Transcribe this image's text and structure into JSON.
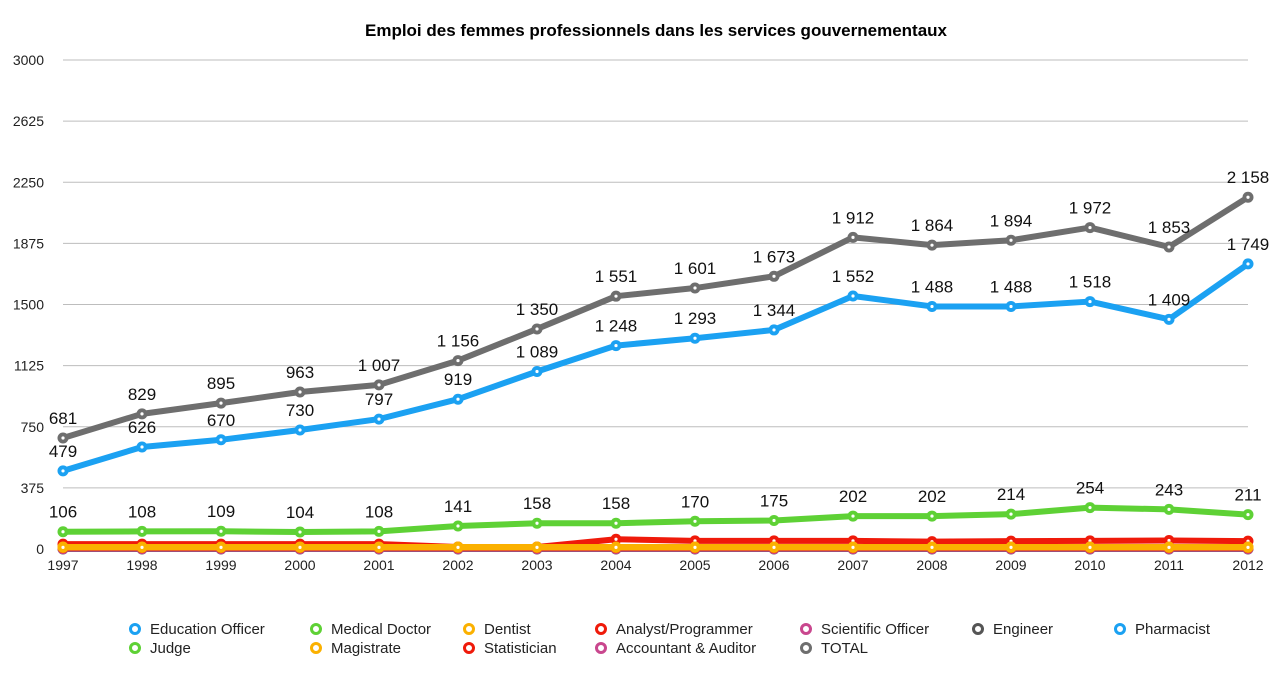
{
  "chart_data": {
    "type": "line",
    "title": "Emploi des femmes professionnels dans les services gouvernementaux",
    "xlabel": "",
    "ylabel": "",
    "ylim": [
      0,
      3000
    ],
    "yticks": [
      "0",
      "375",
      "750",
      "1125",
      "1500",
      "1875",
      "2250",
      "2625",
      "3000"
    ],
    "grid": true,
    "legend_position": "bottom",
    "categories": [
      "1997",
      "1998",
      "1999",
      "2000",
      "2001",
      "2002",
      "2003",
      "2004",
      "2005",
      "2006",
      "2007",
      "2008",
      "2009",
      "2010",
      "2011",
      "2012"
    ],
    "series": [
      {
        "name": "Education Officer",
        "color": "#1ba1f2",
        "labeled": true,
        "values": [
          479,
          626,
          670,
          730,
          797,
          919,
          1089,
          1248,
          1293,
          1344,
          1552,
          1488,
          1488,
          1518,
          1409,
          1749
        ],
        "labels": [
          "479",
          "626",
          "670",
          "730",
          "797",
          "919",
          "1 089",
          "1 248",
          "1 293",
          "1 344",
          "1 552",
          "1 488",
          "1 488",
          "1 518",
          "1 409",
          "1 749"
        ]
      },
      {
        "name": "Medical Doctor",
        "color": "#5ed135",
        "labeled": true,
        "values": [
          106,
          108,
          109,
          104,
          108,
          141,
          158,
          158,
          170,
          175,
          202,
          202,
          214,
          254,
          243,
          211
        ],
        "labels": [
          "106",
          "108",
          "109",
          "104",
          "108",
          "141",
          "158",
          "158",
          "170",
          "175",
          "202",
          "202",
          "214",
          "254",
          "243",
          "211"
        ]
      },
      {
        "name": "Dentist",
        "color": "#fbb100",
        "labeled": false,
        "values": [
          10,
          10,
          10,
          10,
          10,
          10,
          10,
          10,
          10,
          10,
          10,
          10,
          10,
          10,
          10,
          10
        ]
      },
      {
        "name": "Analyst/Programmer",
        "color": "#ef1a0a",
        "labeled": false,
        "values": [
          30,
          30,
          30,
          30,
          30,
          12,
          12,
          60,
          50,
          50,
          50,
          45,
          48,
          50,
          52,
          48
        ]
      },
      {
        "name": "Scientific Officer",
        "color": "#c9478e",
        "labeled": false,
        "values": [
          2,
          2,
          2,
          2,
          2,
          2,
          2,
          2,
          2,
          2,
          2,
          2,
          2,
          2,
          2,
          2
        ]
      },
      {
        "name": "Engineer",
        "color": "#555555",
        "labeled": false,
        "values": [
          0,
          0,
          0,
          0,
          0,
          0,
          0,
          0,
          0,
          0,
          0,
          0,
          0,
          0,
          0,
          0
        ]
      },
      {
        "name": "Pharmacist",
        "color": "#1ba1f2",
        "labeled": false,
        "values": [
          3,
          3,
          3,
          3,
          3,
          3,
          3,
          3,
          3,
          3,
          3,
          3,
          3,
          3,
          3,
          3
        ]
      },
      {
        "name": "Judge",
        "color": "#5ed135",
        "labeled": false,
        "values": [
          5,
          5,
          5,
          5,
          5,
          5,
          5,
          5,
          5,
          5,
          5,
          5,
          5,
          5,
          5,
          5
        ]
      },
      {
        "name": "Magistrate",
        "color": "#fbb100",
        "labeled": false,
        "values": [
          12,
          12,
          12,
          12,
          12,
          12,
          12,
          12,
          12,
          12,
          12,
          12,
          12,
          12,
          12,
          12
        ]
      },
      {
        "name": "Statistician",
        "color": "#ef1a0a",
        "labeled": false,
        "values": [
          8,
          8,
          8,
          8,
          8,
          8,
          8,
          8,
          8,
          8,
          8,
          8,
          8,
          8,
          8,
          8
        ]
      },
      {
        "name": "Accountant & Auditor",
        "color": "#c9478e",
        "labeled": false,
        "values": [
          4,
          4,
          4,
          4,
          4,
          4,
          4,
          4,
          4,
          4,
          4,
          4,
          4,
          4,
          4,
          4
        ]
      },
      {
        "name": "TOTAL",
        "color": "#6e6e6e",
        "labeled": true,
        "values": [
          681,
          829,
          895,
          963,
          1007,
          1156,
          1350,
          1551,
          1601,
          1673,
          1912,
          1864,
          1894,
          1972,
          1853,
          2158
        ],
        "labels": [
          "681",
          "829",
          "895",
          "963",
          "1 007",
          "1 156",
          "1 350",
          "1 551",
          "1 601",
          "1 673",
          "1 912",
          "1 864",
          "1 894",
          "1 972",
          "1 853",
          "2 158"
        ]
      }
    ]
  }
}
